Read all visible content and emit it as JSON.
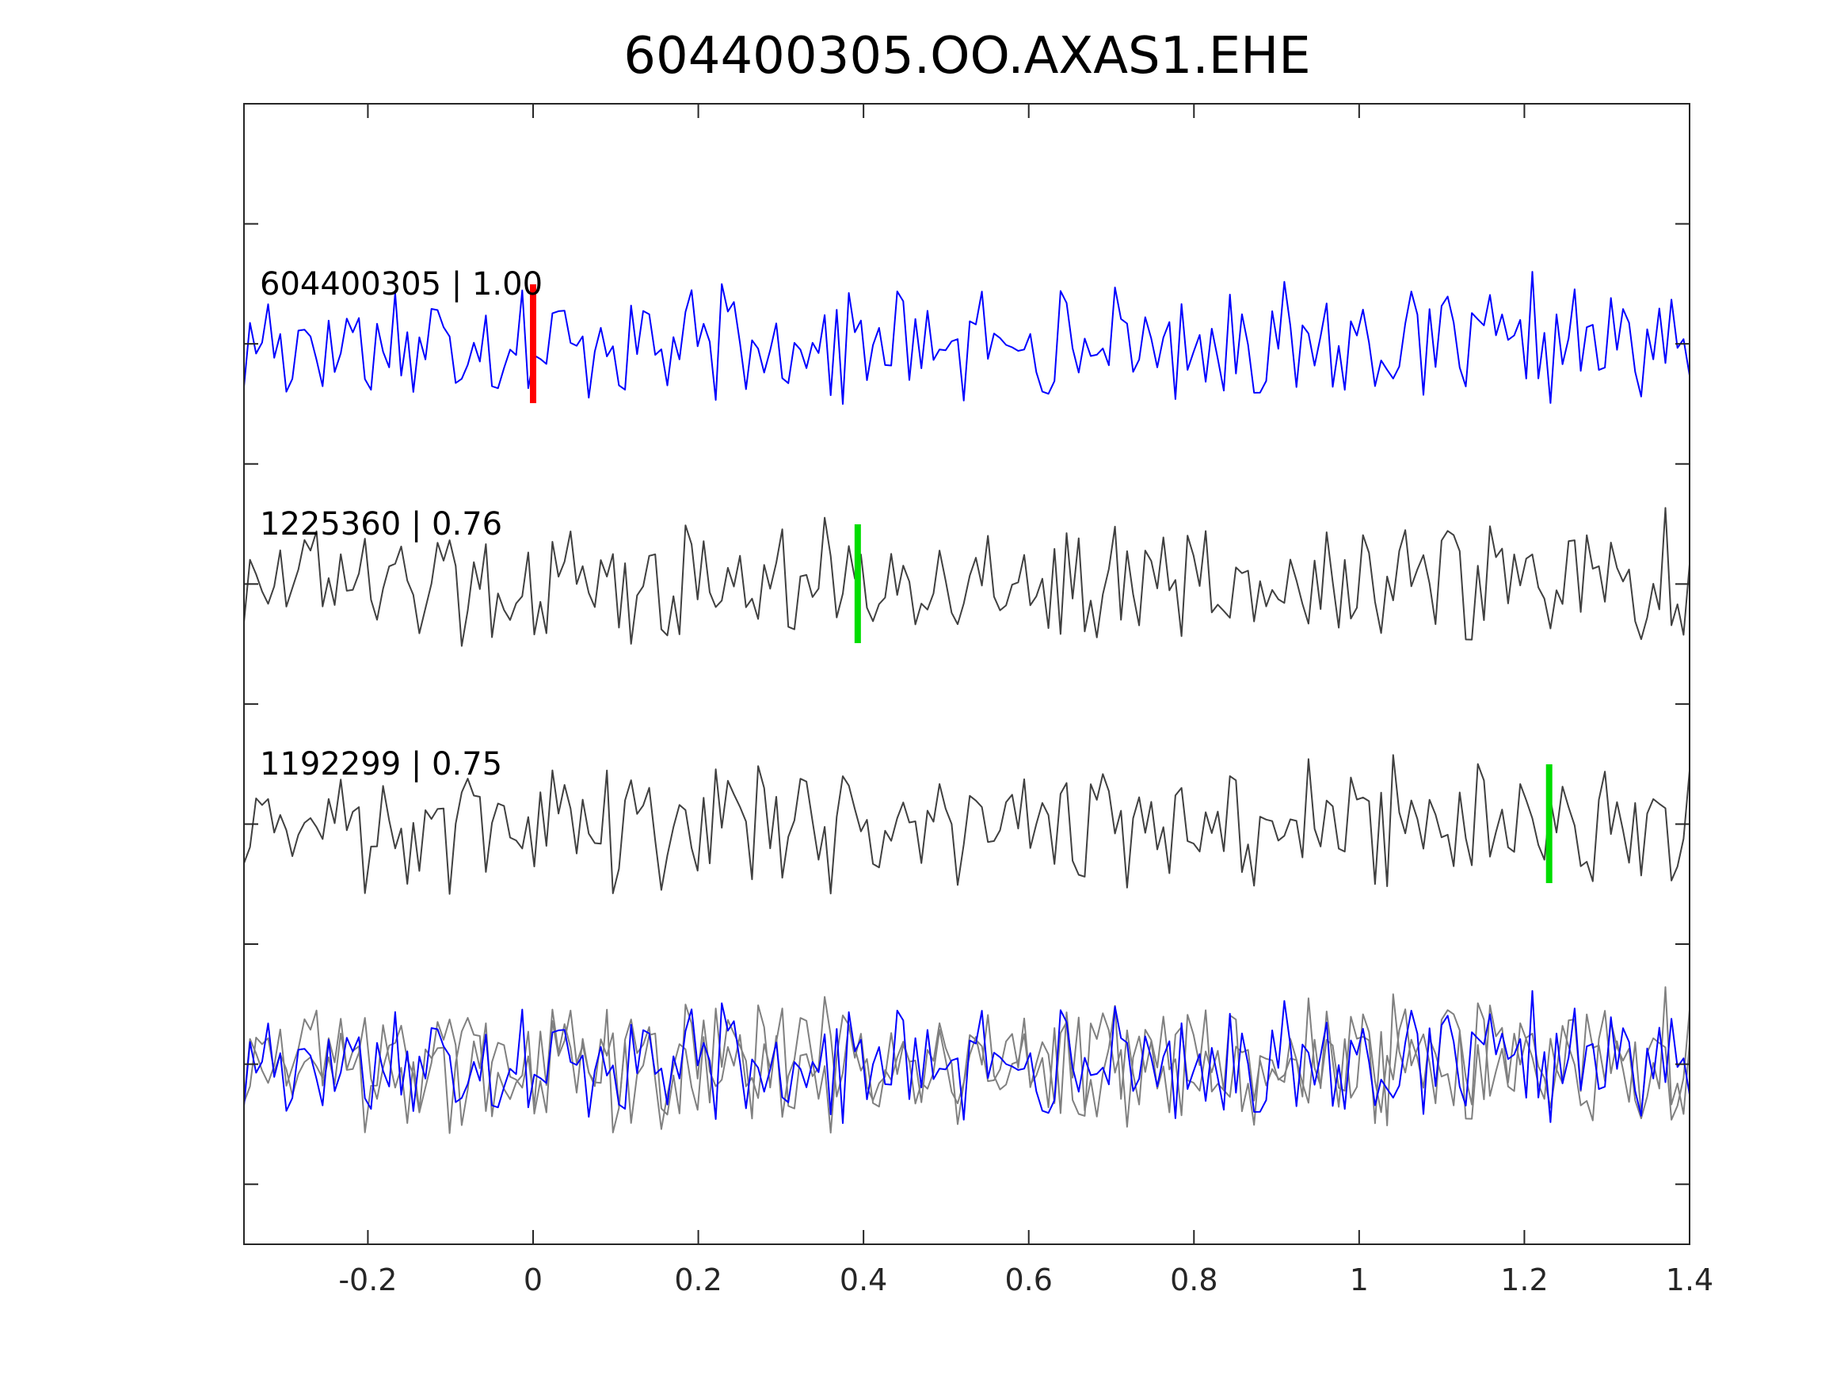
{
  "chart_data": {
    "type": "line",
    "title": "604400305.OO.AXAS1.EHE",
    "xlabel": "",
    "ylabel": "",
    "xlim": [
      -0.35,
      1.4
    ],
    "x_ticks": [
      -0.2,
      0,
      0.2,
      0.4,
      0.6,
      0.8,
      1,
      1.2,
      1.4
    ],
    "x_tick_labels": [
      "-0.2",
      "0",
      "0.2",
      "0.4",
      "0.6",
      "0.8",
      "1",
      "1.2",
      "1.4"
    ],
    "y_tick_count": 9,
    "grid": false,
    "traces": [
      {
        "label": "604400305 | 1.00",
        "color": "#0000ff",
        "marker_x": 0.0,
        "marker_color": "#ff0000",
        "seed": 17,
        "amplitude": 1.0
      },
      {
        "label": "1225360 | 0.76",
        "color": "#404040",
        "marker_x": 0.393,
        "marker_color": "#00dd00",
        "seed": 73,
        "amplitude": 1.1
      },
      {
        "label": "1192299 | 0.75",
        "color": "#404040",
        "marker_x": 1.23,
        "marker_color": "#00dd00",
        "seed": 131,
        "amplitude": 1.1
      }
    ],
    "overlay": {
      "colors": [
        "#0000ff",
        "#808080",
        "#808080"
      ]
    }
  }
}
